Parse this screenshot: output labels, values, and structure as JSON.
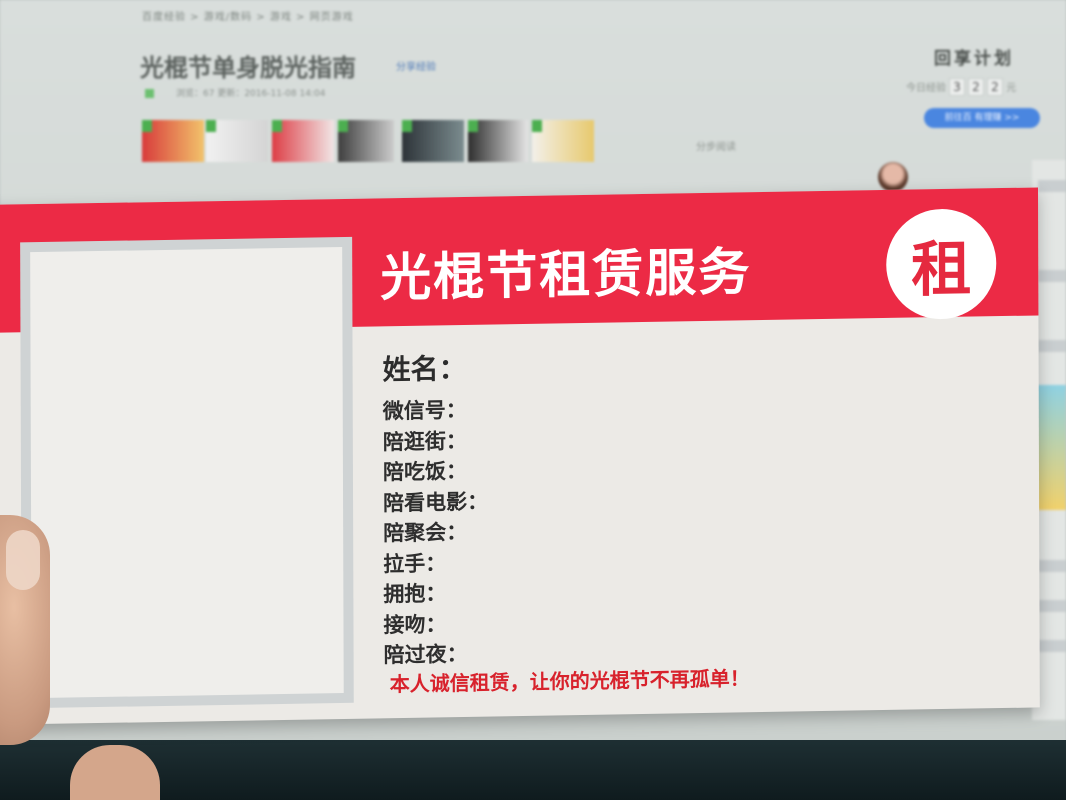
{
  "background": {
    "breadcrumb": "百度经验 > 游戏/数码 > 游戏 > 网页游戏",
    "title": "光棍节单身脱光指南",
    "tag": "分享经验",
    "meta": "浏览：67   更新：2016-11-08 14:04",
    "share": "分步阅读",
    "plan": "回享计划",
    "count_label": "今日经验",
    "count_digits": [
      "3",
      "2",
      "2"
    ],
    "count_suffix": "元",
    "button": "前往百 有理赚 >>"
  },
  "card": {
    "title": "光棍节租赁服务",
    "badge": "租",
    "name_label": "姓名：",
    "fields": [
      "微信号：",
      "陪逛街：",
      "陪吃饭：",
      "陪看电影：",
      "陪聚会：",
      "拉手：",
      "拥抱：",
      "接吻：",
      "陪过夜："
    ],
    "slogan": "本人诚信租赁，让你的光棍节不再孤单！"
  },
  "colors": {
    "band": "#ec2a45",
    "slogan": "#d8222c",
    "card": "#eceae6"
  }
}
